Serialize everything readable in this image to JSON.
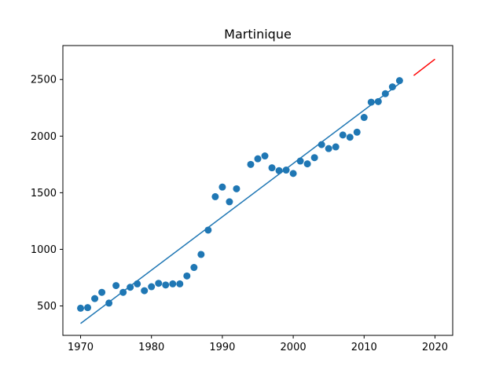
{
  "chart_data": {
    "type": "scatter",
    "title": "Martinique",
    "xlabel": "",
    "ylabel": "",
    "xlim": [
      1967.5,
      2022.5
    ],
    "ylim": [
      240,
      2800
    ],
    "xticks": [
      1970,
      1980,
      1990,
      2000,
      2010,
      2020
    ],
    "yticks": [
      500,
      1000,
      1500,
      2000,
      2500
    ],
    "grid": false,
    "legend": "none",
    "series": [
      {
        "kind": "scatter",
        "color": "#1f77b4",
        "x": [
          1970,
          1971,
          1972,
          1973,
          1974,
          1975,
          1976,
          1977,
          1978,
          1979,
          1980,
          1981,
          1982,
          1983,
          1984,
          1985,
          1986,
          1987,
          1988,
          1989,
          1990,
          1991,
          1992,
          1994,
          1995,
          1996,
          1997,
          1998,
          1999,
          2000,
          2001,
          2002,
          2003,
          2004,
          2005,
          2006,
          2007,
          2008,
          2009,
          2010,
          2011,
          2012,
          2013,
          2014,
          2015
        ],
        "y": [
          480,
          485,
          565,
          620,
          525,
          680,
          620,
          665,
          695,
          635,
          670,
          700,
          685,
          695,
          695,
          765,
          840,
          955,
          1170,
          1465,
          1550,
          1420,
          1535,
          1750,
          1800,
          1825,
          1720,
          1695,
          1700,
          1670,
          1780,
          1755,
          1810,
          1925,
          1890,
          1905,
          2010,
          1990,
          2035,
          2165,
          2300,
          2305,
          2375,
          2435,
          2490
        ]
      },
      {
        "kind": "line",
        "color": "#1f77b4",
        "x": [
          1970,
          2015
        ],
        "y": [
          345,
          2465
        ]
      },
      {
        "kind": "line",
        "color": "#ff0000",
        "x": [
          2017,
          2020
        ],
        "y": [
          2535,
          2680
        ]
      }
    ]
  }
}
